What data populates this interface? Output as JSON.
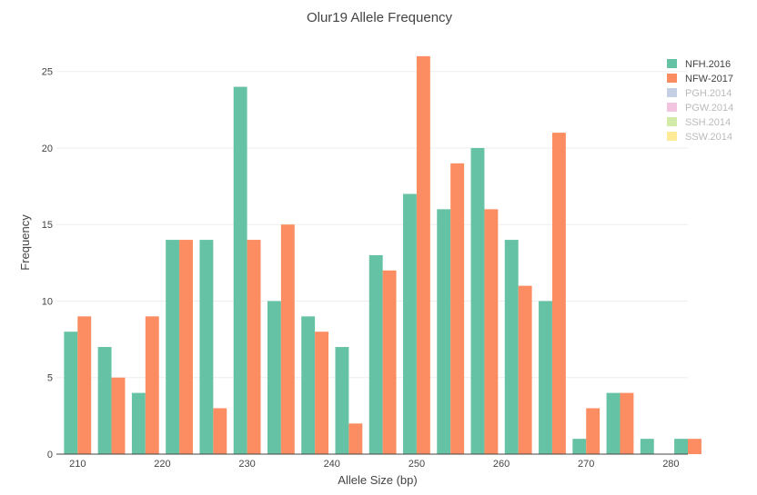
{
  "chart_data": {
    "type": "bar",
    "title": "Olur19 Allele Frequency",
    "xlabel": "Allele Size (bp)",
    "ylabel": "Frequency",
    "xlim": [
      207.5,
      282
    ],
    "ylim": [
      0,
      27
    ],
    "x_ticks": [
      210,
      220,
      230,
      240,
      250,
      260,
      270,
      280
    ],
    "y_ticks": [
      0,
      5,
      10,
      15,
      20,
      25
    ],
    "bin_width": 4,
    "bin_centers": [
      210,
      214,
      218,
      222,
      226,
      230,
      234,
      238,
      242,
      246,
      250,
      254,
      258,
      262,
      266,
      270,
      274,
      278,
      282
    ],
    "grid": true,
    "legend_position": "top-right",
    "series": [
      {
        "name": "NFH.2016",
        "color": "#66c2a5",
        "visible": true,
        "values": [
          8,
          7,
          4,
          14,
          14,
          24,
          10,
          9,
          7,
          13,
          17,
          16,
          20,
          14,
          10,
          1,
          4,
          1,
          1
        ]
      },
      {
        "name": "NFW-2017",
        "color": "#fc8d62",
        "visible": true,
        "values": [
          9,
          5,
          9,
          14,
          3,
          14,
          15,
          8,
          2,
          12,
          26,
          19,
          16,
          11,
          21,
          3,
          4,
          0,
          1
        ]
      },
      {
        "name": "PGH.2014",
        "color": "#8da0cb",
        "visible": false,
        "values": []
      },
      {
        "name": "PGW.2014",
        "color": "#e78ac3",
        "visible": false,
        "values": []
      },
      {
        "name": "SSH.2014",
        "color": "#a6d854",
        "visible": false,
        "values": []
      },
      {
        "name": "SSW.2014",
        "color": "#ffd92f",
        "visible": false,
        "values": []
      }
    ]
  }
}
